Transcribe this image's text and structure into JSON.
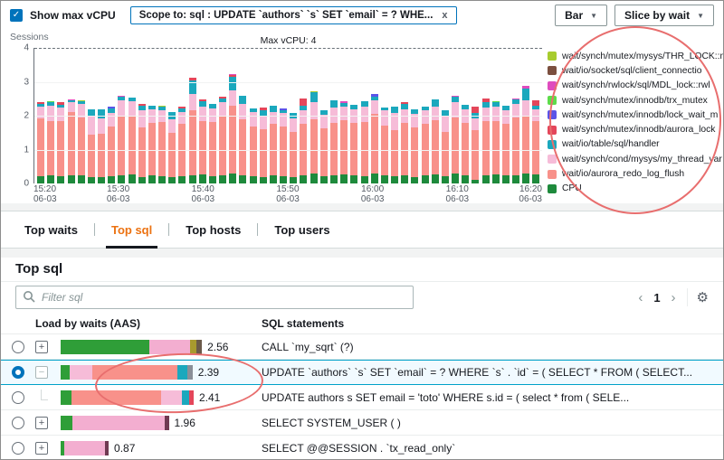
{
  "header": {
    "show_max_vcpu_label": "Show max vCPU",
    "scope_chip": "Scope to: sql : UPDATE `authors` `s` SET `email` = ? WHE...",
    "chip_close": "x",
    "chart_type_dropdown": "Bar",
    "slice_dropdown": "Slice by wait",
    "accent_blue": "#0073bb"
  },
  "chart_data": {
    "type": "bar",
    "stacked": true,
    "ylabel": "Sessions",
    "ylim": [
      0,
      4
    ],
    "y_ticks": [
      4,
      3,
      2,
      1,
      0
    ],
    "max_vcpu_label": "Max vCPU: 4",
    "max_vcpu_value": 4,
    "x_ticks": [
      [
        "15:20",
        "06-03"
      ],
      [
        "15:30",
        "06-03"
      ],
      [
        "15:40",
        "06-03"
      ],
      [
        "15:50",
        "06-03"
      ],
      [
        "16:00",
        "06-03"
      ],
      [
        "16:10",
        "06-03"
      ],
      [
        "16:20",
        "06-03"
      ]
    ],
    "series": [
      {
        "key": "cpu",
        "name": "CPU",
        "color": "#1e8a3c",
        "values": [
          0.22,
          0.25,
          0.22,
          0.25,
          0.25,
          0.2,
          0.18,
          0.22,
          0.25,
          0.28,
          0.2,
          0.25,
          0.22,
          0.2,
          0.22,
          0.25,
          0.28,
          0.22,
          0.25,
          0.3,
          0.25,
          0.22,
          0.2,
          0.25,
          0.22,
          0.18,
          0.25,
          0.3,
          0.22,
          0.25,
          0.28,
          0.25,
          0.22,
          0.3,
          0.25,
          0.22,
          0.25,
          0.2,
          0.25,
          0.28,
          0.22,
          0.3,
          0.25,
          0.12,
          0.25,
          0.28,
          0.25,
          0.25,
          0.3,
          0.28
        ]
      },
      {
        "key": "aurora_redo_log_flush",
        "name": "wait/io/aurora_redo_log_flush",
        "color": "#f8918a",
        "values": [
          1.7,
          1.6,
          1.62,
          1.85,
          1.7,
          1.25,
          1.3,
          1.45,
          1.75,
          1.7,
          1.45,
          1.55,
          1.6,
          1.3,
          1.55,
          1.9,
          1.55,
          1.6,
          1.75,
          2.0,
          1.65,
          1.45,
          1.4,
          1.5,
          1.45,
          1.35,
          1.5,
          1.6,
          1.4,
          1.55,
          1.6,
          1.55,
          1.6,
          1.75,
          1.45,
          1.35,
          1.55,
          1.45,
          1.5,
          1.6,
          1.3,
          1.65,
          1.55,
          1.45,
          1.6,
          1.55,
          1.5,
          1.7,
          1.7,
          1.55
        ]
      },
      {
        "key": "my_thread_var",
        "name": "wait/synch/cond/mysys/my_thread_var",
        "color": "#f6bcd8",
        "values": [
          0.35,
          0.45,
          0.4,
          0.3,
          0.4,
          0.55,
          0.45,
          0.4,
          0.45,
          0.45,
          0.5,
          0.4,
          0.35,
          0.4,
          0.35,
          0.5,
          0.45,
          0.4,
          0.4,
          0.45,
          0.45,
          0.45,
          0.4,
          0.35,
          0.4,
          0.4,
          0.4,
          0.5,
          0.4,
          0.45,
          0.4,
          0.4,
          0.45,
          0.4,
          0.45,
          0.5,
          0.4,
          0.4,
          0.4,
          0.4,
          0.45,
          0.45,
          0.4,
          0.35,
          0.4,
          0.45,
          0.4,
          0.4,
          0.45,
          0.35
        ]
      },
      {
        "key": "handler",
        "name": "wait/io/table/sql/handler",
        "color": "#1ba8bd",
        "values": [
          0.08,
          0.1,
          0.08,
          0.05,
          0.08,
          0.2,
          0.25,
          0.15,
          0.1,
          0.1,
          0.15,
          0.1,
          0.1,
          0.2,
          0.1,
          0.4,
          0.15,
          0.12,
          0.1,
          0.4,
          0.25,
          0.1,
          0.15,
          0.2,
          0.1,
          0.15,
          0.15,
          0.3,
          0.15,
          0.2,
          0.1,
          0.12,
          0.15,
          0.12,
          0.1,
          0.2,
          0.15,
          0.15,
          0.12,
          0.2,
          0.2,
          0.15,
          0.12,
          0.15,
          0.15,
          0.12,
          0.15,
          0.12,
          0.35,
          0.12
        ]
      },
      {
        "key": "aurora_lock",
        "name": "wait/synch/mutex/innodb/aurora_lock",
        "color": "#e4465a",
        "values": [
          0.05,
          0,
          0.08,
          0,
          0,
          0,
          0,
          0,
          0,
          0,
          0.05,
          0,
          0,
          0,
          0.05,
          0.06,
          0.05,
          0,
          0.05,
          0.05,
          0,
          0,
          0.08,
          0,
          0,
          0,
          0.2,
          0,
          0,
          0,
          0,
          0,
          0,
          0,
          0,
          0,
          0.05,
          0,
          0,
          0,
          0,
          0,
          0,
          0.2,
          0.1,
          0,
          0,
          0,
          0,
          0.15
        ]
      },
      {
        "key": "lock_wait",
        "name": "wait/synch/mutex/innodb/lock_wait_m",
        "color": "#5a54e8",
        "values": [
          0,
          0,
          0,
          0,
          0,
          0,
          0,
          0.05,
          0,
          0,
          0,
          0,
          0,
          0,
          0,
          0,
          0,
          0,
          0,
          0,
          0,
          0,
          0,
          0,
          0.05,
          0,
          0,
          0,
          0,
          0,
          0,
          0,
          0,
          0.08,
          0,
          0,
          0,
          0,
          0,
          0,
          0,
          0,
          0,
          0,
          0,
          0,
          0,
          0,
          0,
          0
        ]
      },
      {
        "key": "mdl_lock",
        "name": "wait/synch/rwlock/sql/MDL_lock::rwl",
        "color": "#df4cbe",
        "values": [
          0,
          0,
          0,
          0.03,
          0,
          0,
          0,
          0,
          0.03,
          0,
          0,
          0,
          0,
          0,
          0,
          0,
          0,
          0,
          0,
          0.04,
          0,
          0,
          0,
          0,
          0,
          0,
          0,
          0,
          0,
          0,
          0.04,
          0,
          0,
          0,
          0,
          0,
          0,
          0,
          0,
          0,
          0,
          0.04,
          0,
          0,
          0,
          0,
          0,
          0.05,
          0.08,
          0
        ]
      },
      {
        "key": "trx_mutex",
        "name": "wait/synch/mutex/innodb/trx_mutex",
        "color": "#5ddc4a",
        "values": [
          0,
          0.03,
          0,
          0,
          0,
          0,
          0,
          0,
          0,
          0,
          0,
          0,
          0,
          0,
          0,
          0,
          0,
          0,
          0,
          0,
          0,
          0,
          0,
          0,
          0,
          0,
          0,
          0,
          0,
          0,
          0,
          0,
          0,
          0,
          0,
          0,
          0,
          0,
          0,
          0,
          0,
          0,
          0,
          0,
          0,
          0.04,
          0,
          0,
          0,
          0
        ]
      },
      {
        "key": "thr_lock",
        "name": "wait/synch/mutex/mysys/THR_LOCK::mu",
        "color": "#a7cc2e",
        "values": [
          0,
          0,
          0,
          0,
          0.03,
          0,
          0,
          0,
          0,
          0,
          0,
          0,
          0.03,
          0,
          0,
          0,
          0,
          0,
          0,
          0,
          0,
          0,
          0,
          0,
          0,
          0,
          0,
          0.03,
          0,
          0,
          0,
          0,
          0,
          0,
          0,
          0,
          0,
          0,
          0,
          0,
          0,
          0,
          0,
          0,
          0,
          0,
          0,
          0,
          0,
          0
        ]
      },
      {
        "key": "client_connection",
        "name": "wait/io/socket/sql/client_connectio",
        "color": "#7b4f3f",
        "values": [
          0,
          0,
          0,
          0,
          0,
          0,
          0,
          0,
          0,
          0,
          0,
          0,
          0,
          0,
          0,
          0,
          0,
          0,
          0,
          0,
          0,
          0,
          0,
          0,
          0,
          0,
          0,
          0,
          0,
          0,
          0,
          0,
          0,
          0,
          0,
          0,
          0,
          0,
          0,
          0,
          0,
          0,
          0,
          0,
          0,
          0,
          0,
          0,
          0,
          0
        ]
      }
    ]
  },
  "legend": {
    "items": [
      {
        "label": "wait/synch/mutex/mysys/THR_LOCK::mu",
        "color": "#a7cc2e"
      },
      {
        "label": "wait/io/socket/sql/client_connectio",
        "color": "#7b4f3f"
      },
      {
        "label": "wait/synch/rwlock/sql/MDL_lock::rwl",
        "color": "#df4cbe"
      },
      {
        "label": "wait/synch/mutex/innodb/trx_mutex",
        "color": "#5ddc4a"
      },
      {
        "label": "wait/synch/mutex/innodb/lock_wait_m",
        "color": "#5a54e8"
      },
      {
        "label": "wait/synch/mutex/innodb/aurora_lock",
        "color": "#e4465a"
      },
      {
        "label": "wait/io/table/sql/handler",
        "color": "#1ba8bd"
      },
      {
        "label": "wait/synch/cond/mysys/my_thread_var",
        "color": "#f6bcd8"
      },
      {
        "label": "wait/io/aurora_redo_log_flush",
        "color": "#f8918a"
      },
      {
        "label": "CPU",
        "color": "#1e8a3c"
      }
    ]
  },
  "tabs": {
    "items": [
      {
        "label": "Top waits",
        "selected": false
      },
      {
        "label": "Top sql",
        "selected": true
      },
      {
        "label": "Top hosts",
        "selected": false
      },
      {
        "label": "Top users",
        "selected": false
      }
    ]
  },
  "top_sql": {
    "title": "Top sql",
    "filter_placeholder": "Filter sql",
    "page_number": "1",
    "columns": {
      "load": "Load by waits (AAS)",
      "sql": "SQL statements"
    },
    "rows": [
      {
        "value": "2.56",
        "selected": false,
        "expander": "plus",
        "segments": [
          {
            "color": "#2f9e38",
            "value": 1.6
          },
          {
            "color": "#f3aed0",
            "value": 0.74
          },
          {
            "color": "#a89a2e",
            "value": 0.12
          },
          {
            "color": "#6b5a4a",
            "value": 0.1
          }
        ],
        "sql": "CALL `my_sqrt` (?)"
      },
      {
        "value": "2.39",
        "selected": true,
        "expander": "minus",
        "segments": [
          {
            "color": "#2f9e38",
            "value": 0.17
          },
          {
            "color": "#f6bcd8",
            "value": 0.4
          },
          {
            "color": "#f8918a",
            "value": 1.55
          },
          {
            "color": "#1ba8bd",
            "value": 0.17
          },
          {
            "color": "#8a8f98",
            "value": 0.1
          }
        ],
        "sql": "UPDATE `authors` `s` SET `email` = ? WHERE `s` . `id` = ( SELECT * FROM ( SELECT..."
      },
      {
        "value": "2.41",
        "selected": false,
        "expander": "child",
        "segments": [
          {
            "color": "#2f9e38",
            "value": 0.2
          },
          {
            "color": "#f8918a",
            "value": 1.62
          },
          {
            "color": "#f6bcd8",
            "value": 0.38
          },
          {
            "color": "#1ba8bd",
            "value": 0.13
          },
          {
            "color": "#e4465a",
            "value": 0.08
          }
        ],
        "sql": "UPDATE authors s SET email = 'toto' WHERE s.id = ( select * from ( SELE..."
      },
      {
        "value": "1.96",
        "selected": false,
        "expander": "plus",
        "segments": [
          {
            "color": "#2f9e38",
            "value": 0.22
          },
          {
            "color": "#f3aed0",
            "value": 1.66
          },
          {
            "color": "#703a52",
            "value": 0.08
          }
        ],
        "sql": "SELECT SYSTEM_USER ( )"
      },
      {
        "value": "0.87",
        "selected": false,
        "expander": "plus",
        "segments": [
          {
            "color": "#2f9e38",
            "value": 0.07
          },
          {
            "color": "#f3aed0",
            "value": 0.74
          },
          {
            "color": "#703a52",
            "value": 0.06
          }
        ],
        "sql": "SELECT @@SESSION . `tx_read_only`"
      }
    ]
  },
  "annotations": {
    "color": "#e86e6e"
  }
}
